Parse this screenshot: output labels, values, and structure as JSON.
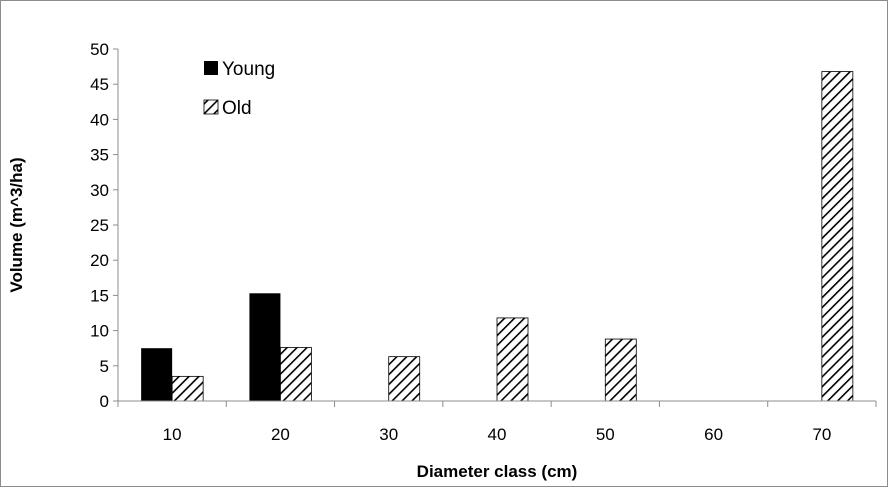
{
  "chart_data": {
    "type": "bar",
    "categories": [
      "10",
      "20",
      "30",
      "40",
      "50",
      "60",
      "70"
    ],
    "series": [
      {
        "name": "Young",
        "values": [
          7.5,
          15.3,
          0,
          0,
          0,
          0,
          0
        ],
        "color": "#000000",
        "fill": "solid"
      },
      {
        "name": "Old",
        "values": [
          3.5,
          7.6,
          6.3,
          11.8,
          8.8,
          0,
          46.8
        ],
        "color": "#000000",
        "fill": "diagonal-hatch"
      }
    ],
    "xlabel": "Diameter class (cm)",
    "ylabel": "Volume (m^3/ha)",
    "ylim": [
      0,
      50
    ],
    "yticks": [
      0,
      5,
      10,
      15,
      20,
      25,
      30,
      35,
      40,
      45,
      50
    ],
    "grid": false,
    "legend_position": "top-left"
  }
}
